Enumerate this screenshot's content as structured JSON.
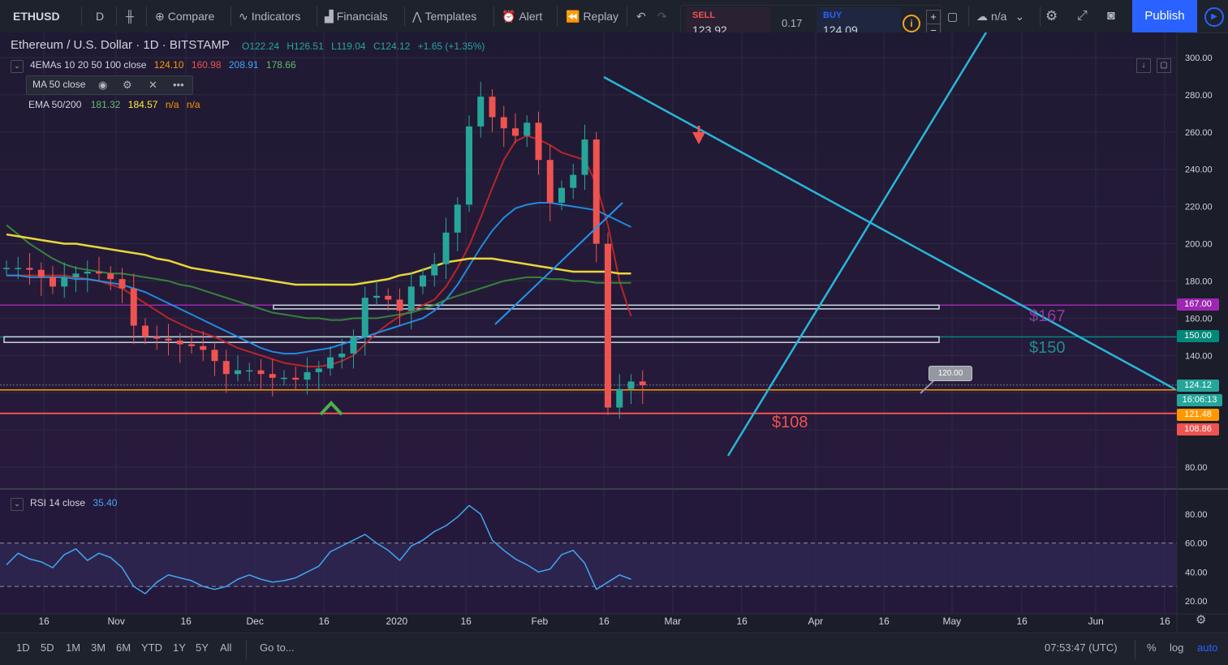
{
  "toolbar": {
    "symbol": "ETHUSD",
    "interval": "D",
    "compare": "Compare",
    "indicators": "Indicators",
    "financials": "Financials",
    "templates": "Templates",
    "alert": "Alert",
    "replay": "Replay",
    "sell_label": "SELL",
    "sell_price": "123.92",
    "spread": "0.17",
    "buy_label": "BUY",
    "buy_price": "124.09",
    "layout_label": "n/a",
    "publish": "Publish"
  },
  "header": {
    "title": "Ethereum / U.S. Dollar · 1D · BITSTAMP",
    "open": "O122.24",
    "high": "H126.51",
    "low": "L119.04",
    "close": "C124.12",
    "change": "+1.65 (+1.35%)"
  },
  "legend": {
    "emas_name": "4EMAs 10 20 50 100 close",
    "ema10": "124.10",
    "ema20": "160.98",
    "ema50": "208.91",
    "ema100": "178.66",
    "ma50_name": "MA 50 close",
    "ema50200_name": "EMA 50/200",
    "ema50200_v1": "181.32",
    "ema50200_v2": "184.57",
    "ema50200_v3": "n/a",
    "ema50200_v4": "n/a",
    "rsi_name": "RSI 14 close",
    "rsi_value": "35.40"
  },
  "price_labels": {
    "l167": "167.00",
    "l150": "150.00",
    "last": "124.12",
    "countdown": "16:06:13",
    "l121": "121.48",
    "l108": "108.86",
    "callout": "120.00"
  },
  "annotations": {
    "a167": "$167",
    "a150": "$150",
    "a108": "$108"
  },
  "bottom": {
    "ranges": [
      "1D",
      "5D",
      "1M",
      "3M",
      "6M",
      "YTD",
      "1Y",
      "5Y",
      "All"
    ],
    "goto": "Go to...",
    "time": "07:53:47 (UTC)",
    "percent": "%",
    "log": "log",
    "auto": "auto"
  },
  "colors": {
    "background": "#1b1d2b",
    "up": "#26a69a",
    "down": "#ef5350",
    "ema10": "#ff9800",
    "ema20": "#c62828",
    "ema50": "#2196f3",
    "ema100": "#388e3c",
    "ma200": "#ffeb3b",
    "trendline": "#29b6d6",
    "purple": "#9c27b0",
    "publish": "#2962ff"
  },
  "chart_data": [
    {
      "type": "candlestick",
      "title": "Ethereum / U.S. Dollar · 1D · BITSTAMP",
      "x_ticks": [
        "16",
        "Nov",
        "16",
        "Dec",
        "16",
        "2020",
        "16",
        "Feb",
        "16",
        "Mar",
        "16",
        "Apr",
        "16",
        "May",
        "16",
        "Jun",
        "16"
      ],
      "y_ticks": [
        80,
        100,
        120,
        140,
        160,
        180,
        200,
        220,
        240,
        260,
        280,
        300
      ],
      "y_tick_labels": [
        "80.00",
        "",
        "",
        "140.00",
        "160.00",
        "180.00",
        "200.00",
        "220.00",
        "240.00",
        "260.00",
        "280.00",
        "300.00"
      ],
      "ylim": [
        75,
        305
      ],
      "horizontal_lines": [
        167,
        150,
        121.48,
        108.86
      ],
      "series": [
        {
          "name": "EMA 10",
          "values": [
            182,
            181,
            182,
            183,
            182,
            181,
            182,
            181,
            180,
            176,
            170,
            165,
            158,
            153,
            150,
            148,
            147,
            146,
            143,
            140,
            137,
            134,
            133,
            132,
            131,
            130,
            130,
            130,
            132,
            136,
            142,
            155,
            163,
            165,
            166,
            168,
            170,
            176,
            188,
            205,
            225,
            245,
            256,
            258,
            252,
            245,
            238,
            234,
            234,
            238,
            232,
            205,
            185,
            168,
            160
          ]
        },
        {
          "name": "EMA 20",
          "values": [
            183,
            183,
            183,
            183,
            183,
            183,
            182,
            181,
            180,
            178,
            176,
            172,
            168,
            164,
            160,
            157,
            154,
            152,
            150,
            147,
            144,
            142,
            140,
            138,
            136,
            135,
            134,
            134,
            135,
            137,
            140,
            146,
            152,
            157,
            161,
            164,
            167,
            170,
            177,
            187,
            199,
            214,
            230,
            245,
            255,
            258,
            256,
            253,
            249,
            247,
            245,
            232,
            210,
            180,
            161
          ]
        },
        {
          "name": "EMA 50",
          "values": [
            183,
            183,
            182,
            182,
            182,
            182,
            181,
            181,
            180,
            179,
            178,
            176,
            174,
            171,
            168,
            165,
            162,
            159,
            156,
            153,
            150,
            147,
            144,
            142,
            141,
            141,
            142,
            143,
            144,
            146,
            148,
            150,
            152,
            154,
            156,
            158,
            160,
            164,
            170,
            178,
            188,
            198,
            207,
            214,
            219,
            221,
            222,
            222,
            221,
            220,
            219,
            218,
            215,
            212,
            209
          ]
        },
        {
          "name": "EMA 100",
          "values": [
            210,
            205,
            200,
            196,
            192,
            189,
            187,
            186,
            185,
            184,
            184,
            183,
            182,
            181,
            180,
            178,
            177,
            175,
            173,
            171,
            169,
            167,
            165,
            163,
            162,
            161,
            160,
            160,
            159,
            159,
            160,
            160,
            160,
            161,
            162,
            163,
            165,
            167,
            170,
            172,
            174,
            176,
            178,
            180,
            181,
            182,
            182,
            181,
            181,
            180,
            180,
            179,
            179,
            179,
            179
          ]
        },
        {
          "name": "MA 200",
          "values": [
            205,
            204,
            203,
            202,
            201,
            200,
            200,
            199,
            198,
            197,
            196,
            195,
            194,
            192,
            191,
            189,
            187,
            186,
            185,
            184,
            183,
            182,
            181,
            180,
            179,
            178,
            178,
            178,
            178,
            178,
            178,
            179,
            180,
            181,
            183,
            184,
            186,
            188,
            190,
            191,
            192,
            192,
            192,
            191,
            190,
            189,
            188,
            187,
            186,
            185,
            185,
            185,
            185,
            184,
            184
          ]
        }
      ],
      "closes": [
        187,
        187,
        186,
        182,
        177,
        182,
        184,
        185,
        184,
        181,
        176,
        156,
        150,
        149,
        148,
        146,
        145,
        143,
        137,
        130,
        132,
        132,
        130,
        128,
        128,
        127,
        131,
        133,
        139,
        141,
        150,
        171,
        172,
        170,
        164,
        177,
        183,
        189,
        206,
        221,
        263,
        279,
        268,
        262,
        258,
        265,
        245,
        222,
        230,
        237,
        256,
        200,
        112,
        122,
        126,
        124
      ]
    },
    {
      "type": "line",
      "title": "RSI 14 close",
      "ylim": [
        15,
        92
      ],
      "y_ticks": [
        20,
        40,
        60,
        80
      ],
      "y_tick_labels": [
        "20.00",
        "40.00",
        "60.00",
        "80.00"
      ],
      "bands": [
        30,
        60
      ],
      "series": [
        {
          "name": "RSI 14 close",
          "values": [
            45,
            53,
            49,
            47,
            43,
            52,
            56,
            48,
            53,
            50,
            43,
            30,
            25,
            33,
            38,
            36,
            34,
            30,
            28,
            30,
            35,
            38,
            35,
            33,
            34,
            36,
            40,
            44,
            54,
            58,
            62,
            66,
            60,
            55,
            48,
            58,
            62,
            68,
            72,
            78,
            86,
            80,
            62,
            55,
            49,
            45,
            40,
            42,
            52,
            55,
            46,
            28,
            33,
            38,
            35
          ]
        }
      ]
    }
  ]
}
